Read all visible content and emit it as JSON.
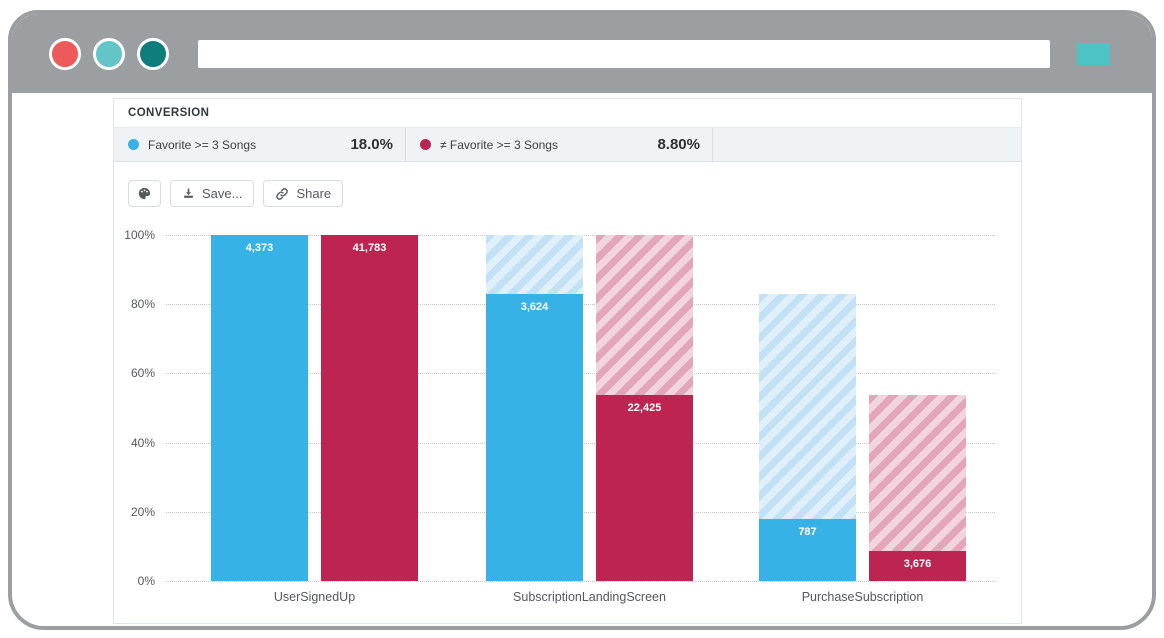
{
  "browser": {
    "traffic_lights": [
      {
        "name": "close",
        "color": "#ed5a5a"
      },
      {
        "name": "minimize",
        "color": "#63c5c7"
      },
      {
        "name": "maximize",
        "color": "#0f7d7c"
      }
    ],
    "url_value": "",
    "action_button_color": "#4ec3c5",
    "frame_color": "#9b9fa1"
  },
  "panel": {
    "header": "CONVERSION",
    "legend": [
      {
        "label": "Favorite >= 3 Songs",
        "value": "18.0%",
        "color": "#37b2e6"
      },
      {
        "label": "≠ Favorite >= 3 Songs",
        "value": "8.80%",
        "color": "#bd2451"
      }
    ],
    "toolbar": {
      "palette_icon": "palette-icon",
      "save_label": "Save...",
      "share_label": "Share"
    }
  },
  "chart_data": {
    "type": "bar",
    "subtype": "funnel-conversion",
    "categories": [
      "UserSignedUp",
      "SubscriptionLandingScreen",
      "PurchaseSubscription"
    ],
    "series": [
      {
        "name": "Favorite >= 3 Songs",
        "color": "#37b2e6",
        "hatch_dark": "#c3e1f4",
        "hatch_light": "#e0f0fa",
        "values": [
          4373,
          3624,
          787
        ],
        "labels": [
          "4,373",
          "3,624",
          "787"
        ],
        "pct_of_first": [
          100,
          82.9,
          18.0
        ],
        "overall_conversion": "18.0%"
      },
      {
        "name": "≠ Favorite >= 3 Songs",
        "color": "#bd2451",
        "hatch_dark": "#e2a5b9",
        "hatch_light": "#f1d4dd",
        "values": [
          41783,
          22425,
          3676
        ],
        "labels": [
          "41,783",
          "22,425",
          "3,676"
        ],
        "pct_of_first": [
          100,
          53.7,
          8.8
        ],
        "overall_conversion": "8.80%"
      }
    ],
    "y_ticks": [
      "0%",
      "20%",
      "40%",
      "60%",
      "80%",
      "100%"
    ],
    "ylim": [
      0,
      100
    ],
    "grid": true,
    "grid_style": "dotted",
    "legend_position": "top-strip",
    "note_hatched": "hatched segment shows drop-off from previous funnel step"
  }
}
